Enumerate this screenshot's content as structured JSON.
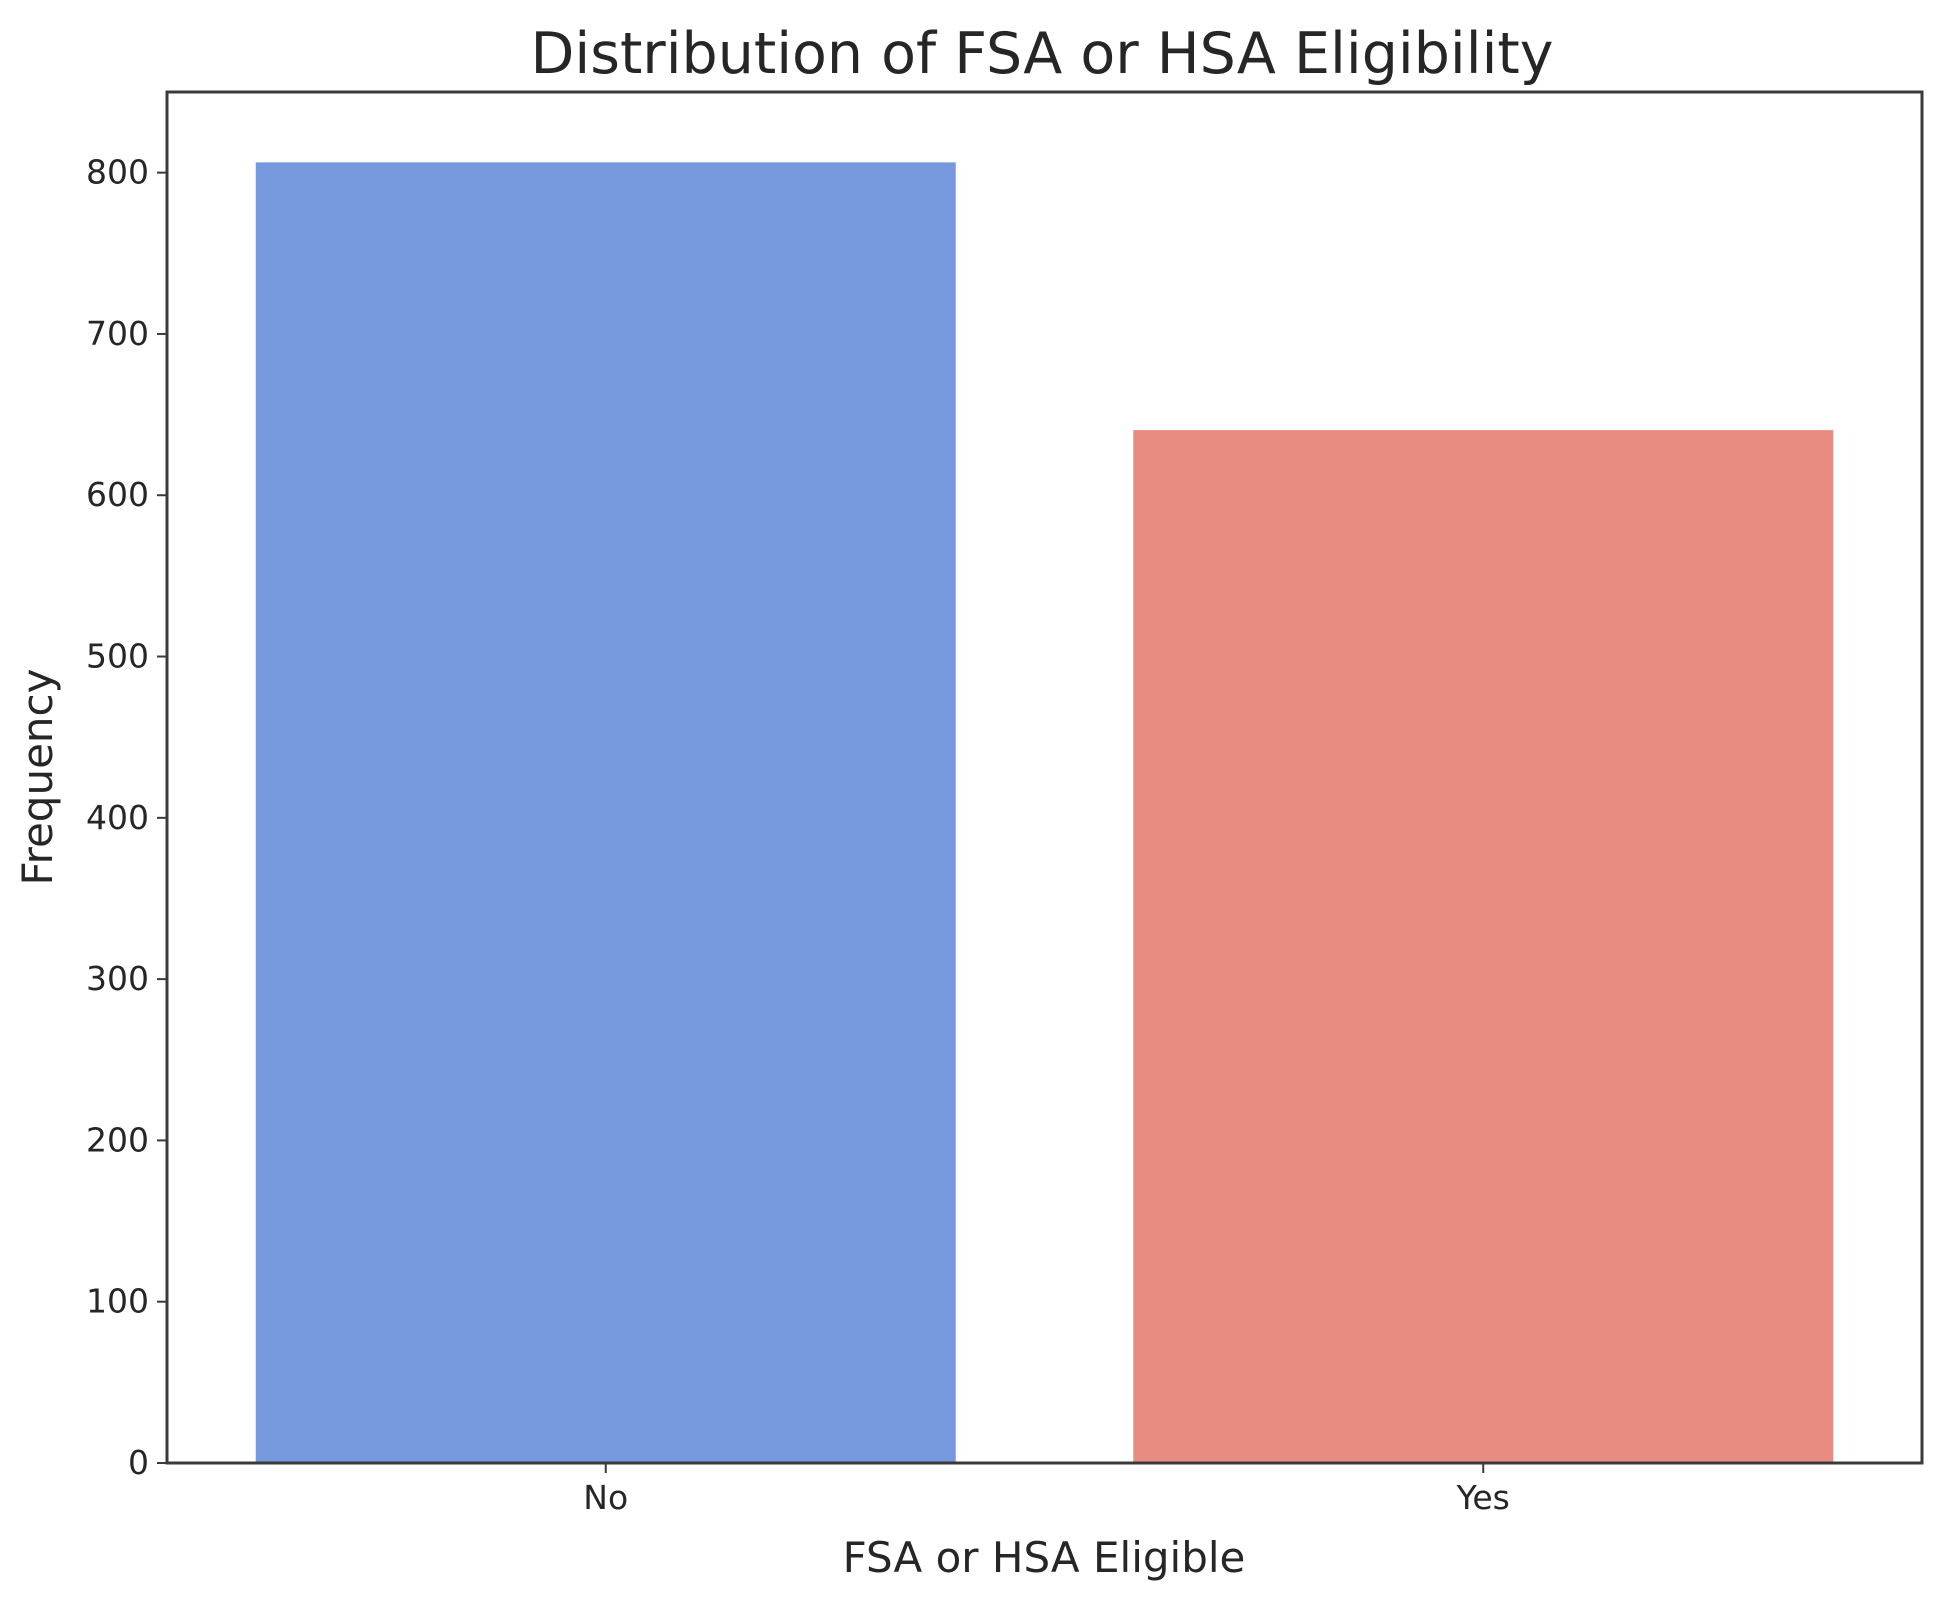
{
  "chart_data": {
    "type": "bar",
    "title": "Distribution of FSA or HSA Eligibility",
    "xlabel": "FSA or HSA Eligible",
    "ylabel": "Frequency",
    "categories": [
      "No",
      "Yes"
    ],
    "values": [
      807,
      641
    ],
    "colors": [
      "#7699dd",
      "#e88c82"
    ],
    "ylim": [
      0,
      850
    ],
    "yticks": [
      0,
      100,
      200,
      300,
      400,
      500,
      600,
      700,
      800
    ],
    "grid": false,
    "legend": "none"
  }
}
